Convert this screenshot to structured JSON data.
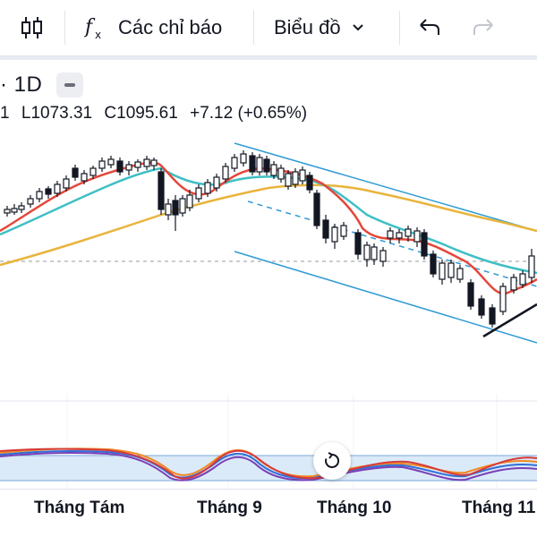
{
  "toolbar": {
    "indicators_label": "Các chỉ báo",
    "chart_type_label": "Biểu đồ",
    "icons": [
      "candles-icon",
      "fx-icon",
      "chevron-down-icon",
      "undo-icon",
      "redo-icon"
    ]
  },
  "legend": {
    "symbol_tail": "· 1D",
    "ohlc_open_tail": "1",
    "low_label": "L",
    "low_value": "1073.31",
    "close_label": "C",
    "close_value": "1095.61",
    "change": "+7.12 (+0.65%)"
  },
  "x_axis": {
    "labels": [
      "Tháng Tám",
      "Tháng 9",
      "Tháng 10",
      "Tháng 11"
    ]
  },
  "colors": {
    "up_candle": "#ffffff",
    "down_candle": "#131722",
    "ma_fast": "#e5463a",
    "ma_mid": "#3fbfc4",
    "ma_slow": "#e9b43c",
    "channel": "#2f9bd6",
    "osc_band": "#dbeaf8"
  }
}
